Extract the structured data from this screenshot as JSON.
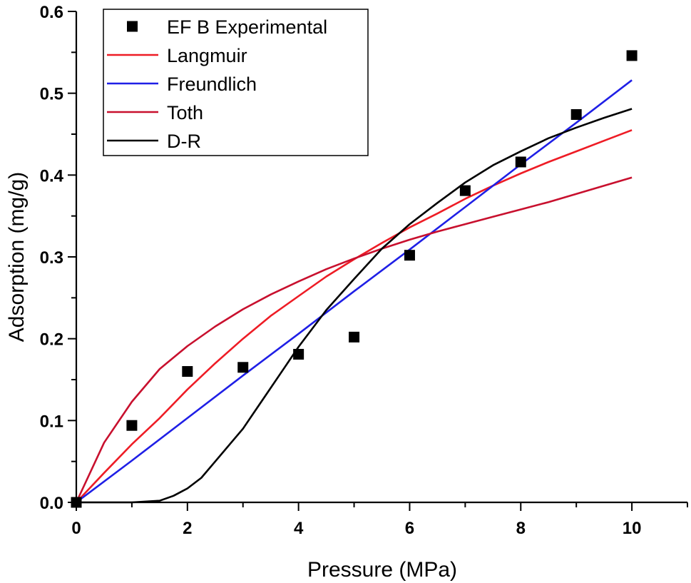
{
  "chart_data": {
    "type": "scatter",
    "title": "",
    "xlabel": "Pressure (MPa)",
    "ylabel": "Adsorption (mg/g)",
    "xlim": [
      0,
      11
    ],
    "ylim": [
      0,
      0.6
    ],
    "xticks": [
      0,
      2,
      4,
      6,
      8,
      10
    ],
    "xtick_labels": [
      "0",
      "2",
      "4",
      "6",
      "8",
      "10"
    ],
    "yticks": [
      0,
      0.1,
      0.2,
      0.3,
      0.4,
      0.5,
      0.6
    ],
    "ytick_labels": [
      "0.0",
      "0.1",
      "0.2",
      "0.3",
      "0.4",
      "0.5",
      "0.6"
    ],
    "grid": false,
    "legend_position": "top-left",
    "series": [
      {
        "name": "EF B Experimental",
        "kind": "scatter",
        "marker": "square",
        "color": "#000000",
        "x": [
          0,
          1,
          2,
          3,
          4,
          5,
          6,
          7,
          8,
          9,
          10
        ],
        "y": [
          0.0,
          0.094,
          0.16,
          0.165,
          0.181,
          0.202,
          0.302,
          0.381,
          0.416,
          0.474,
          0.546
        ]
      },
      {
        "name": "Langmuir",
        "kind": "line",
        "color": "#ee1c25",
        "x": [
          0,
          0.5,
          1,
          1.5,
          2,
          2.5,
          3,
          3.5,
          4,
          4.5,
          5,
          5.5,
          6,
          6.5,
          7,
          7.5,
          8,
          8.5,
          9,
          9.5,
          10
        ],
        "y": [
          0.0,
          0.036,
          0.071,
          0.103,
          0.138,
          0.17,
          0.2,
          0.228,
          0.252,
          0.276,
          0.297,
          0.317,
          0.336,
          0.353,
          0.371,
          0.387,
          0.402,
          0.416,
          0.429,
          0.442,
          0.455
        ]
      },
      {
        "name": "Freundlich",
        "kind": "line",
        "color": "#1f1fe6",
        "x": [
          0,
          1,
          2,
          3,
          4,
          5,
          6,
          7,
          8,
          9,
          10
        ],
        "y": [
          0.0,
          0.051,
          0.103,
          0.155,
          0.206,
          0.258,
          0.309,
          0.361,
          0.413,
          0.464,
          0.516
        ]
      },
      {
        "name": "Toth",
        "kind": "line",
        "color": "#c8102e",
        "x": [
          0,
          0.5,
          1,
          1.5,
          2,
          2.5,
          3,
          3.5,
          4,
          4.5,
          5,
          5.5,
          6,
          6.5,
          7,
          7.5,
          8,
          8.5,
          9,
          9.5,
          10
        ],
        "y": [
          0.0,
          0.073,
          0.123,
          0.163,
          0.191,
          0.215,
          0.236,
          0.254,
          0.27,
          0.285,
          0.298,
          0.31,
          0.321,
          0.331,
          0.34,
          0.349,
          0.358,
          0.367,
          0.377,
          0.387,
          0.397
        ]
      },
      {
        "name": "D-R",
        "kind": "line",
        "color": "#000000",
        "x": [
          0,
          0.5,
          1,
          1.5,
          1.75,
          2,
          2.25,
          2.5,
          2.75,
          3,
          3.25,
          3.5,
          3.75,
          4,
          4.5,
          5,
          5.5,
          6,
          6.5,
          7,
          7.5,
          8,
          8.5,
          9,
          9.5,
          10
        ],
        "y": [
          0.0,
          0.0,
          0.0,
          0.002,
          0.008,
          0.017,
          0.03,
          0.05,
          0.07,
          0.09,
          0.115,
          0.14,
          0.165,
          0.19,
          0.235,
          0.273,
          0.31,
          0.34,
          0.366,
          0.391,
          0.412,
          0.429,
          0.445,
          0.458,
          0.47,
          0.481
        ]
      }
    ]
  }
}
